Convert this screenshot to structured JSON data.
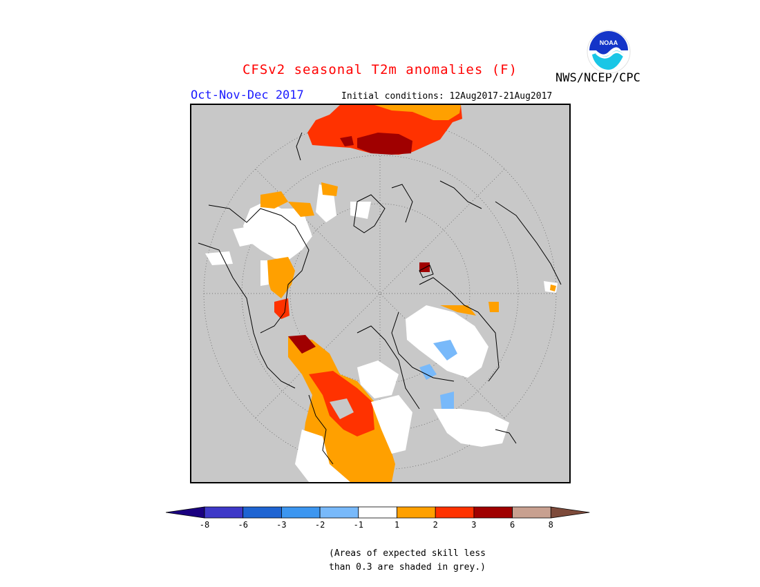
{
  "title": "CFSv2 seasonal T2m anomalies (F)",
  "agency": "NWS/NCEP/CPC",
  "logo": {
    "text": "NOAA",
    "icon": "noaa-logo-icon"
  },
  "season": "Oct-Nov-Dec 2017",
  "initial_conditions": "Initial conditions: 12Aug2017-21Aug2017",
  "colorbar": {
    "colors": [
      "#1a0080",
      "#3e38c8",
      "#1e64d2",
      "#3c96f0",
      "#78b9fa",
      "#ffffff",
      "#ffa000",
      "#ff3200",
      "#a00000",
      "#c8a090",
      "#7d4a3a"
    ],
    "tick_labels": [
      "-8",
      "-6",
      "-3",
      "-2",
      "-1",
      "1",
      "2",
      "3",
      "6",
      "8"
    ]
  },
  "note": {
    "line1": "(Areas of expected skill less",
    "line2": "than 0.3 are shaded in grey.)"
  }
}
